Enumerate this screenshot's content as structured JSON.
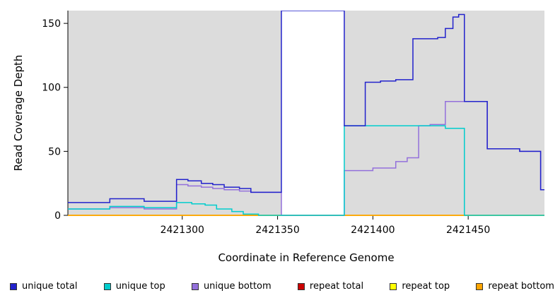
{
  "figure": {
    "ylabel": "Read Coverage Depth",
    "xlabel": "Coordinate in Reference Genome"
  },
  "legend": {
    "items": [
      {
        "label": "unique total",
        "color": "#2222cc"
      },
      {
        "label": "unique top",
        "color": "#00cdcd"
      },
      {
        "label": "unique bottom",
        "color": "#9370db"
      },
      {
        "label": "repeat total",
        "color": "#cc0000"
      },
      {
        "label": "repeat top",
        "color": "#ffff00"
      },
      {
        "label": "repeat bottom",
        "color": "#ffa500"
      }
    ]
  },
  "chart_data": {
    "type": "line",
    "subtype": "step-coverage",
    "title": "",
    "xlabel": "Coordinate in Reference Genome",
    "ylabel": "Read Coverage Depth",
    "xlim": [
      2421240,
      2421490
    ],
    "ylim": [
      0,
      160
    ],
    "x_ticks": [
      2421300,
      2421350,
      2421400,
      2421450
    ],
    "y_ticks": [
      0,
      50,
      100,
      150
    ],
    "grid": false,
    "legend_position": "bottom",
    "background_color": "#ffffff",
    "shaded_region_color": "#dcdcdc",
    "background_regions": [
      {
        "x0": 2421240,
        "x1": 2421352
      },
      {
        "x0": 2421385,
        "x1": 2421490
      }
    ],
    "gap_region": {
      "x0": 2421352,
      "x1": 2421385
    },
    "series": [
      {
        "name": "repeat total",
        "color": "#cc0000",
        "width": 1.5,
        "points": [
          [
            2421240,
            0
          ]
        ]
      },
      {
        "name": "repeat top",
        "color": "#ffff00",
        "width": 1.5,
        "points": [
          [
            2421240,
            0
          ]
        ]
      },
      {
        "name": "repeat bottom",
        "color": "#ffa500",
        "width": 1.5,
        "points": [
          [
            2421240,
            0
          ]
        ]
      },
      {
        "name": "unique bottom",
        "color": "#9370db",
        "width": 1.5,
        "points": [
          [
            2421240,
            5
          ],
          [
            2421262,
            6
          ],
          [
            2421280,
            5
          ],
          [
            2421297,
            24
          ],
          [
            2421303,
            23
          ],
          [
            2421310,
            22
          ],
          [
            2421316,
            21
          ],
          [
            2421322,
            20
          ],
          [
            2421330,
            19
          ],
          [
            2421336,
            18
          ],
          [
            2421352,
            0
          ],
          [
            2421385,
            35
          ],
          [
            2421400,
            37
          ],
          [
            2421412,
            42
          ],
          [
            2421418,
            45
          ],
          [
            2421424,
            70
          ],
          [
            2421430,
            71
          ],
          [
            2421438,
            89
          ],
          [
            2421460,
            52
          ],
          [
            2421477,
            50
          ],
          [
            2421488,
            20
          ]
        ]
      },
      {
        "name": "unique top",
        "color": "#00cdcd",
        "width": 1.5,
        "points": [
          [
            2421240,
            5
          ],
          [
            2421262,
            7
          ],
          [
            2421280,
            6
          ],
          [
            2421297,
            10
          ],
          [
            2421305,
            9
          ],
          [
            2421312,
            8
          ],
          [
            2421318,
            5
          ],
          [
            2421326,
            3
          ],
          [
            2421332,
            1
          ],
          [
            2421340,
            0
          ],
          [
            2421385,
            70
          ],
          [
            2421438,
            68
          ],
          [
            2421448,
            0
          ]
        ]
      },
      {
        "name": "unique total",
        "color": "#2222cc",
        "width": 1.5,
        "points": [
          [
            2421240,
            10
          ],
          [
            2421262,
            13
          ],
          [
            2421280,
            11
          ],
          [
            2421297,
            28
          ],
          [
            2421303,
            27
          ],
          [
            2421310,
            25
          ],
          [
            2421316,
            24
          ],
          [
            2421322,
            22
          ],
          [
            2421330,
            21
          ],
          [
            2421336,
            18
          ],
          [
            2421352,
            160
          ],
          [
            2421385,
            70
          ],
          [
            2421396,
            104
          ],
          [
            2421404,
            105
          ],
          [
            2421412,
            106
          ],
          [
            2421421,
            138
          ],
          [
            2421434,
            139
          ],
          [
            2421438,
            146
          ],
          [
            2421442,
            155
          ],
          [
            2421445,
            157
          ],
          [
            2421448,
            89
          ],
          [
            2421460,
            52
          ],
          [
            2421477,
            50
          ],
          [
            2421488,
            20
          ]
        ]
      }
    ]
  }
}
